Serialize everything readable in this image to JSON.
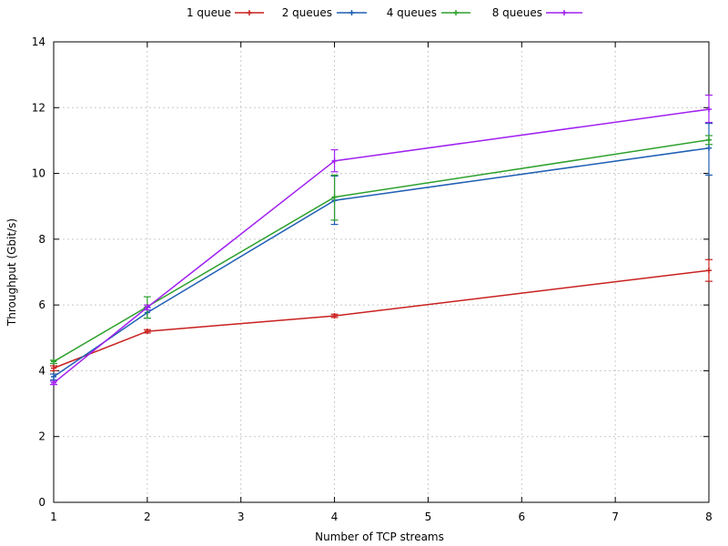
{
  "chart_data": {
    "type": "line",
    "xlabel": "Number of TCP streams",
    "ylabel": "Throughput (Gbit/s)",
    "xlim": [
      1,
      8
    ],
    "ylim": [
      0,
      14
    ],
    "x_ticks": [
      1,
      2,
      3,
      4,
      5,
      6,
      7,
      8
    ],
    "y_ticks": [
      0,
      2,
      4,
      6,
      8,
      10,
      12,
      14
    ],
    "grid": true,
    "legend_position": "top-center",
    "x": [
      1,
      2,
      4,
      8
    ],
    "series": [
      {
        "name": "1 queue",
        "color": "#c8201e",
        "values": [
          4.08,
          5.2,
          5.67,
          7.05
        ],
        "error_low": [
          4.0,
          5.15,
          5.62,
          6.72
        ],
        "error_high": [
          4.15,
          5.25,
          5.72,
          7.38
        ]
      },
      {
        "name": "2 queues",
        "color": "#1f5fb4",
        "values": [
          3.82,
          5.77,
          9.18,
          10.77
        ],
        "error_low": [
          3.72,
          5.6,
          8.45,
          9.95
        ],
        "error_high": [
          3.9,
          5.92,
          9.92,
          11.52
        ]
      },
      {
        "name": "4 queues",
        "color": "#2ca02c",
        "values": [
          4.28,
          5.95,
          9.28,
          11.02
        ],
        "error_low": [
          4.22,
          5.6,
          8.58,
          10.88
        ],
        "error_high": [
          4.32,
          6.25,
          9.95,
          11.15
        ]
      },
      {
        "name": "8 queues",
        "color": "#a020f0",
        "values": [
          3.63,
          5.93,
          10.38,
          11.95
        ],
        "error_low": [
          3.58,
          5.85,
          10.05,
          11.55
        ],
        "error_high": [
          3.68,
          6.0,
          10.72,
          12.38
        ]
      }
    ]
  }
}
